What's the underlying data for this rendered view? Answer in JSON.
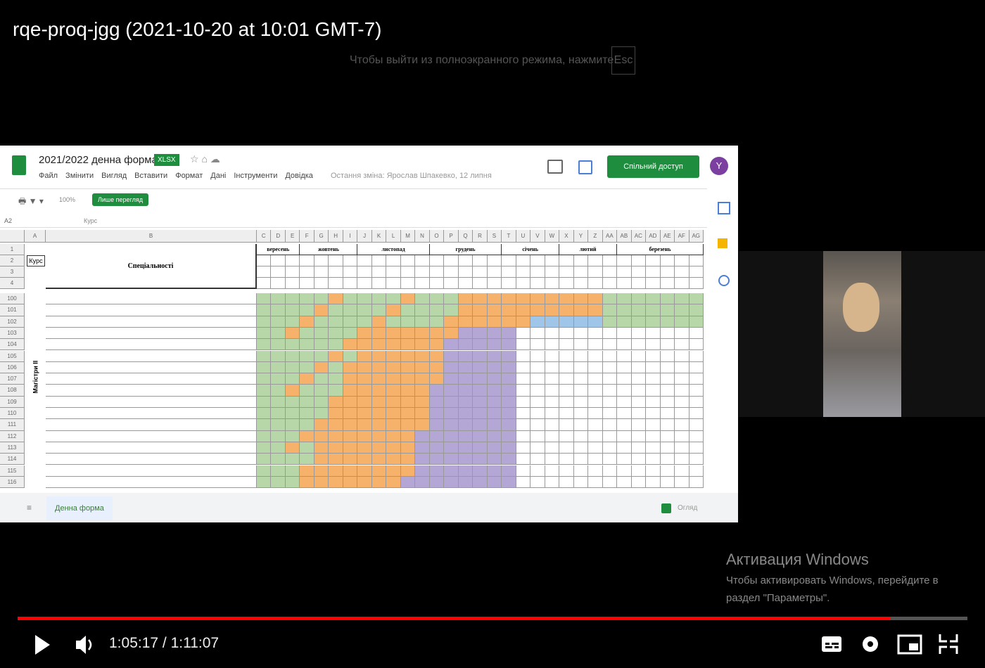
{
  "video": {
    "title": "rqe-proq-jgg (2021-10-20 at 10:01 GMT-7)",
    "fullscreen_hint": "Чтобы выйти из полноэкранного режима, нажмите",
    "esc_key": "Esc",
    "current_time": "1:05:17",
    "separator": "/",
    "duration": "1:11:07"
  },
  "spreadsheet": {
    "doc_title": "2021/2022 денна форма",
    "badge": "XLSX",
    "menu": [
      "Файл",
      "Змінити",
      "Вигляд",
      "Вставити",
      "Формат",
      "Дані",
      "Інструменти",
      "Довідка"
    ],
    "last_edit": "Остання зміна: Ярослав Шпакевко, 12 липня",
    "share_button": "Спільний доступ",
    "avatar": "Y",
    "zoom": "100%",
    "mode_button": "Лише перегляд",
    "cell_ref": "A2",
    "formula": "Курс",
    "column_letters": [
      "A",
      "B",
      "C",
      "D",
      "E",
      "F",
      "G",
      "H",
      "I",
      "J",
      "K",
      "L",
      "M",
      "N",
      "O",
      "P",
      "Q",
      "R",
      "S",
      "T",
      "U",
      "V",
      "W",
      "X",
      "Y",
      "Z",
      "AA",
      "AB",
      "AC",
      "AD",
      "AE",
      "AF",
      "AG"
    ],
    "row_numbers": [
      "1",
      "2",
      "3",
      "4",
      "100",
      "101",
      "102",
      "103",
      "104",
      "105",
      "106",
      "107",
      "108",
      "109",
      "110",
      "111",
      "112",
      "113",
      "114",
      "115",
      "116"
    ],
    "header_course": "Курс",
    "header_specialties": "Спеціальності",
    "group_label": "Магістри II",
    "months": [
      "вересень",
      "жовтень",
      "листопад",
      "грудень",
      "січень",
      "лютий",
      "березень"
    ],
    "sheet_tab": "Денна форма",
    "explore": "Огляд"
  },
  "windows_activation": {
    "title": "Активация Windows",
    "text": "Чтобы активировать Windows, перейдите в раздел \"Параметры\"."
  }
}
